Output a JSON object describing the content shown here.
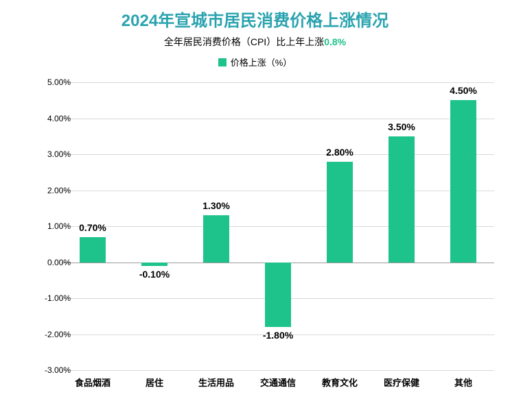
{
  "title": {
    "text": "2024年宣城市居民消费价格上涨情况",
    "color": "#2aa3af",
    "fontsize": 24
  },
  "subtitle": {
    "prefix": "全年居民消费价格（CPI）比上年上涨",
    "highlight": "0.8%",
    "highlight_color": "#1ec28b",
    "fontsize": 14,
    "color": "#000000"
  },
  "legend": {
    "label": "价格上涨（%）",
    "swatch_color": "#1ec28b",
    "fontsize": 13,
    "color": "#000000"
  },
  "chart": {
    "type": "bar",
    "categories": [
      "食品烟酒",
      "居住",
      "生活用品",
      "交通通信",
      "教育文化",
      "医疗保健",
      "其他"
    ],
    "values": [
      0.7,
      -0.1,
      1.3,
      -1.8,
      2.8,
      3.5,
      4.5
    ],
    "value_labels": [
      "0.70%",
      "-0.10%",
      "1.30%",
      "-1.80%",
      "2.80%",
      "3.50%",
      "4.50%"
    ],
    "bar_color": "#1ec28b",
    "background_color": "#ffffff",
    "grid_color": "#d9d9d9",
    "zero_line_color": "#9c9c9c",
    "yaxis": {
      "min": -3.0,
      "max": 5.0,
      "ticks": [
        5.0,
        4.0,
        3.0,
        2.0,
        1.0,
        0.0,
        -1.0,
        -2.0,
        -3.0
      ],
      "tick_labels": [
        "5.00%",
        "4.00%",
        "3.00%",
        "2.00%",
        "1.00%",
        "0.00%",
        "-1.00%",
        "-2.00%",
        "-3.00%"
      ],
      "fontsize": 12,
      "color": "#000000"
    },
    "xaxis": {
      "fontsize": 13,
      "color": "#000000"
    },
    "bar_width_ratio": 0.42,
    "label_fontsize": 14,
    "label_color": "#000000"
  }
}
